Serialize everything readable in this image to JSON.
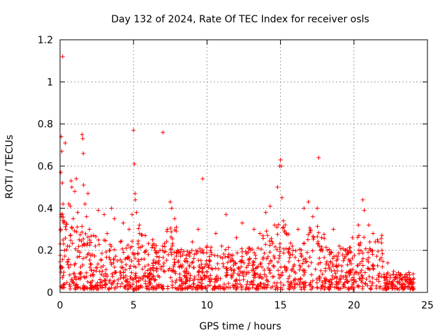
{
  "chart_data": {
    "type": "scatter",
    "title": "Day 132 of 2024, Rate Of TEC Index for receiver osls",
    "xlabel": "GPS time / hours",
    "ylabel": "ROTI / TECUs",
    "xlim": [
      0,
      25
    ],
    "ylim": [
      0,
      1.2
    ],
    "x_ticks": [
      0,
      5,
      10,
      15,
      20,
      25
    ],
    "x_tick_labels": [
      "0",
      "5",
      "10",
      "15",
      "20",
      "25"
    ],
    "y_ticks": [
      0,
      0.2,
      0.4,
      0.6,
      0.8,
      1.0,
      1.2
    ],
    "y_tick_labels": [
      "0",
      "0.2",
      "0.4",
      "0.6",
      "0.8",
      "1",
      "1.2"
    ],
    "grid": true,
    "marker": "+",
    "color": "#ff0000",
    "series": [
      {
        "name": "ROTI",
        "points": [
          [
            0.05,
            0.57
          ],
          [
            0.08,
            0.74
          ],
          [
            0.12,
            0.67
          ],
          [
            0.15,
            0.52
          ],
          [
            0.18,
            1.12
          ],
          [
            0.2,
            0.42
          ],
          [
            0.25,
            0.33
          ],
          [
            0.3,
            0.2
          ],
          [
            0.35,
            0.71
          ],
          [
            0.1,
            0.12
          ],
          [
            0.22,
            0.08
          ],
          [
            0.28,
            0.04
          ],
          [
            0.4,
            0.3
          ],
          [
            0.5,
            0.22
          ],
          [
            0.6,
            0.42
          ],
          [
            0.7,
            0.41
          ],
          [
            0.75,
            0.53
          ],
          [
            0.8,
            0.5
          ],
          [
            0.9,
            0.35
          ],
          [
            1.0,
            0.48
          ],
          [
            1.1,
            0.54
          ],
          [
            1.2,
            0.38
          ],
          [
            1.3,
            0.25
          ],
          [
            1.4,
            0.12
          ],
          [
            1.5,
            0.75
          ],
          [
            1.55,
            0.73
          ],
          [
            1.58,
            0.66
          ],
          [
            1.6,
            0.51
          ],
          [
            1.7,
            0.42
          ],
          [
            1.8,
            0.36
          ],
          [
            1.9,
            0.47
          ],
          [
            2.0,
            0.3
          ],
          [
            2.2,
            0.18
          ],
          [
            2.4,
            0.22
          ],
          [
            2.6,
            0.39
          ],
          [
            2.8,
            0.12
          ],
          [
            3.0,
            0.37
          ],
          [
            3.2,
            0.28
          ],
          [
            3.4,
            0.2
          ],
          [
            3.5,
            0.4
          ],
          [
            3.7,
            0.35
          ],
          [
            3.9,
            0.15
          ],
          [
            4.1,
            0.24
          ],
          [
            4.3,
            0.33
          ],
          [
            4.5,
            0.21
          ],
          [
            4.7,
            0.3
          ],
          [
            4.9,
            0.37
          ],
          [
            5.0,
            0.77
          ],
          [
            5.05,
            0.61
          ],
          [
            5.1,
            0.47
          ],
          [
            5.12,
            0.44
          ],
          [
            5.2,
            0.38
          ],
          [
            5.4,
            0.32
          ],
          [
            5.6,
            0.22
          ],
          [
            5.8,
            0.27
          ],
          [
            6.0,
            0.18
          ],
          [
            6.3,
            0.25
          ],
          [
            6.5,
            0.14
          ],
          [
            6.8,
            0.2
          ],
          [
            7.0,
            0.76
          ],
          [
            7.3,
            0.3
          ],
          [
            7.5,
            0.43
          ],
          [
            7.6,
            0.4
          ],
          [
            7.8,
            0.35
          ],
          [
            8.0,
            0.2
          ],
          [
            8.3,
            0.12
          ],
          [
            8.7,
            0.18
          ],
          [
            9.0,
            0.24
          ],
          [
            9.4,
            0.3
          ],
          [
            9.7,
            0.54
          ],
          [
            10.0,
            0.22
          ],
          [
            10.3,
            0.18
          ],
          [
            10.6,
            0.28
          ],
          [
            11.0,
            0.22
          ],
          [
            11.3,
            0.37
          ],
          [
            11.6,
            0.15
          ],
          [
            12.0,
            0.26
          ],
          [
            12.4,
            0.33
          ],
          [
            12.8,
            0.19
          ],
          [
            13.2,
            0.3
          ],
          [
            13.6,
            0.28
          ],
          [
            14.0,
            0.38
          ],
          [
            14.3,
            0.41
          ],
          [
            14.6,
            0.32
          ],
          [
            14.8,
            0.5
          ],
          [
            15.0,
            0.63
          ],
          [
            14.95,
            0.6
          ],
          [
            15.05,
            0.6
          ],
          [
            15.1,
            0.45
          ],
          [
            15.2,
            0.34
          ],
          [
            15.4,
            0.28
          ],
          [
            15.8,
            0.22
          ],
          [
            16.2,
            0.3
          ],
          [
            16.6,
            0.4
          ],
          [
            16.9,
            0.43
          ],
          [
            17.2,
            0.36
          ],
          [
            17.5,
            0.4
          ],
          [
            17.6,
            0.64
          ],
          [
            17.8,
            0.26
          ],
          [
            18.2,
            0.2
          ],
          [
            18.6,
            0.3
          ],
          [
            19.0,
            0.22
          ],
          [
            19.5,
            0.18
          ],
          [
            19.9,
            0.26
          ],
          [
            20.3,
            0.32
          ],
          [
            20.6,
            0.44
          ],
          [
            20.7,
            0.39
          ],
          [
            21.0,
            0.32
          ],
          [
            21.3,
            0.28
          ],
          [
            21.6,
            0.25
          ],
          [
            21.9,
            0.2
          ],
          [
            22.3,
            0.14
          ],
          [
            22.7,
            0.1
          ],
          [
            23.1,
            0.08
          ],
          [
            23.5,
            0.06
          ],
          [
            23.8,
            0.05
          ],
          [
            24.0,
            0.04
          ]
        ],
        "dense_band_points_note_free": true
      }
    ]
  }
}
